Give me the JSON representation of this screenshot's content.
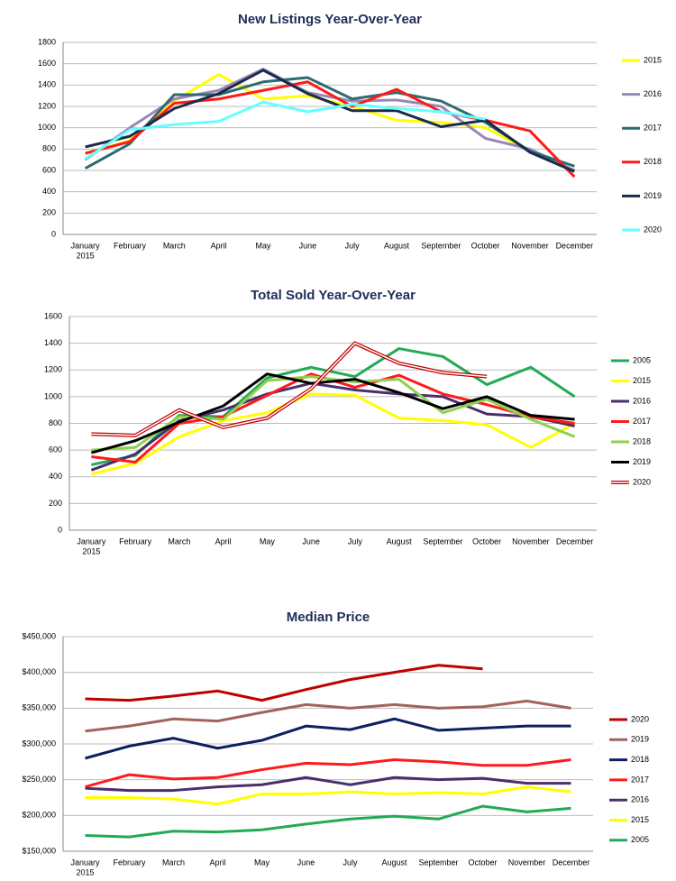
{
  "chart_data": [
    {
      "type": "line",
      "title": "New Listings Year-Over-Year",
      "categories": [
        "January",
        "February",
        "March",
        "April",
        "May",
        "June",
        "July",
        "August",
        "September",
        "October",
        "November",
        "December"
      ],
      "category_note": "2015",
      "ylim": [
        0,
        1800
      ],
      "yticks": [
        0,
        200,
        400,
        600,
        800,
        1000,
        1200,
        1400,
        1600,
        1800
      ],
      "grid": true,
      "series": [
        {
          "name": "2015",
          "color": "#ffff00",
          "values": [
            760,
            880,
            1250,
            1500,
            1270,
            1300,
            1200,
            1070,
            1050,
            1000,
            780,
            600
          ]
        },
        {
          "name": "2016",
          "color": "#9b86b8",
          "values": [
            700,
            1000,
            1270,
            1350,
            1550,
            1330,
            1250,
            1260,
            1200,
            900,
            800,
            600
          ]
        },
        {
          "name": "2017",
          "color": "#2e6b70",
          "values": [
            620,
            850,
            1310,
            1310,
            1430,
            1470,
            1270,
            1330,
            1250,
            1050,
            780,
            640
          ]
        },
        {
          "name": "2018",
          "color": "#ff1a1a",
          "values": [
            760,
            870,
            1230,
            1270,
            1350,
            1430,
            1200,
            1360,
            1150,
            1070,
            970,
            540
          ]
        },
        {
          "name": "2019",
          "color": "#1a2b4a",
          "values": [
            820,
            920,
            1180,
            1320,
            1540,
            1320,
            1160,
            1160,
            1010,
            1070,
            770,
            590
          ]
        },
        {
          "name": "2020",
          "color": "#66ffff",
          "values": [
            710,
            980,
            1030,
            1060,
            1240,
            1150,
            1220,
            1180,
            1150,
            1080,
            null,
            null
          ]
        }
      ]
    },
    {
      "type": "line",
      "title": "Total Sold Year-Over-Year",
      "categories": [
        "January",
        "February",
        "March",
        "April",
        "May",
        "June",
        "July",
        "August",
        "September",
        "October",
        "November",
        "December"
      ],
      "category_note": "2015",
      "ylim": [
        0,
        1600
      ],
      "yticks": [
        0,
        200,
        400,
        600,
        800,
        1000,
        1200,
        1400,
        1600
      ],
      "grid": true,
      "series": [
        {
          "name": "2005",
          "color": "#22aa55",
          "values": [
            490,
            560,
            860,
            850,
            1140,
            1220,
            1150,
            1360,
            1300,
            1090,
            1220,
            1000
          ]
        },
        {
          "name": "2015",
          "color": "#ffff00",
          "values": [
            420,
            500,
            700,
            820,
            880,
            1020,
            1010,
            840,
            820,
            790,
            620,
            800
          ]
        },
        {
          "name": "2016",
          "color": "#4b2e6b",
          "values": [
            450,
            570,
            820,
            900,
            1020,
            1100,
            1050,
            1020,
            1000,
            870,
            850,
            780
          ]
        },
        {
          "name": "2017",
          "color": "#ff1a1a",
          "values": [
            550,
            510,
            800,
            850,
            1010,
            1170,
            1070,
            1160,
            1020,
            940,
            850,
            800
          ]
        },
        {
          "name": "2018",
          "color": "#8fd14f",
          "values": [
            600,
            620,
            850,
            830,
            1120,
            1150,
            1110,
            1130,
            880,
            980,
            830,
            700
          ]
        },
        {
          "name": "2019",
          "color": "#000000",
          "values": [
            580,
            670,
            810,
            930,
            1170,
            1100,
            1130,
            1030,
            910,
            1000,
            860,
            830
          ]
        },
        {
          "name": "2020",
          "color": "#c00000",
          "line_style": "double",
          "values": [
            720,
            710,
            900,
            770,
            840,
            1060,
            1400,
            1250,
            1180,
            1150,
            null,
            null
          ]
        }
      ]
    },
    {
      "type": "line",
      "title": "Median Price",
      "categories": [
        "January",
        "February",
        "March",
        "April",
        "May",
        "June",
        "July",
        "August",
        "September",
        "October",
        "November",
        "December"
      ],
      "category_note": "2015",
      "ylim": [
        150000,
        450000
      ],
      "yticks": [
        {
          "value": 150000,
          "label": "$150,000"
        },
        {
          "value": 200000,
          "label": "$200,000"
        },
        {
          "value": 250000,
          "label": "$250,000"
        },
        {
          "value": 300000,
          "label": "$300,000"
        },
        {
          "value": 350000,
          "label": "$350,000"
        },
        {
          "value": 400000,
          "label": "$400,000"
        },
        {
          "value": 450000,
          "label": "$450,000"
        }
      ],
      "grid": true,
      "series": [
        {
          "name": "2020",
          "color": "#c00000",
          "values": [
            363000,
            361000,
            367000,
            374000,
            361000,
            376000,
            390000,
            400000,
            410000,
            405000,
            null,
            null
          ]
        },
        {
          "name": "2019",
          "color": "#a0645a",
          "values": [
            318000,
            325000,
            335000,
            332000,
            344000,
            355000,
            350000,
            355000,
            350000,
            352000,
            360000,
            350000
          ]
        },
        {
          "name": "2018",
          "color": "#0a2060",
          "values": [
            280000,
            297000,
            308000,
            294000,
            305000,
            325000,
            320000,
            335000,
            319000,
            322000,
            325000,
            325000
          ]
        },
        {
          "name": "2017",
          "color": "#ff1a1a",
          "values": [
            240000,
            257000,
            251000,
            253000,
            264000,
            273000,
            271000,
            278000,
            275000,
            270000,
            270000,
            278000
          ]
        },
        {
          "name": "2016",
          "color": "#4b2e6b",
          "values": [
            238000,
            235000,
            235000,
            240000,
            243000,
            253000,
            243000,
            253000,
            250000,
            252000,
            245000,
            245000
          ]
        },
        {
          "name": "2015",
          "color": "#ffff00",
          "values": [
            225000,
            225000,
            223000,
            216000,
            230000,
            230000,
            233000,
            230000,
            232000,
            230000,
            240000,
            233000
          ]
        },
        {
          "name": "2005",
          "color": "#22aa55",
          "values": [
            172000,
            170000,
            178000,
            177000,
            180000,
            188000,
            195000,
            199000,
            195000,
            213000,
            205000,
            210000
          ]
        }
      ]
    }
  ]
}
